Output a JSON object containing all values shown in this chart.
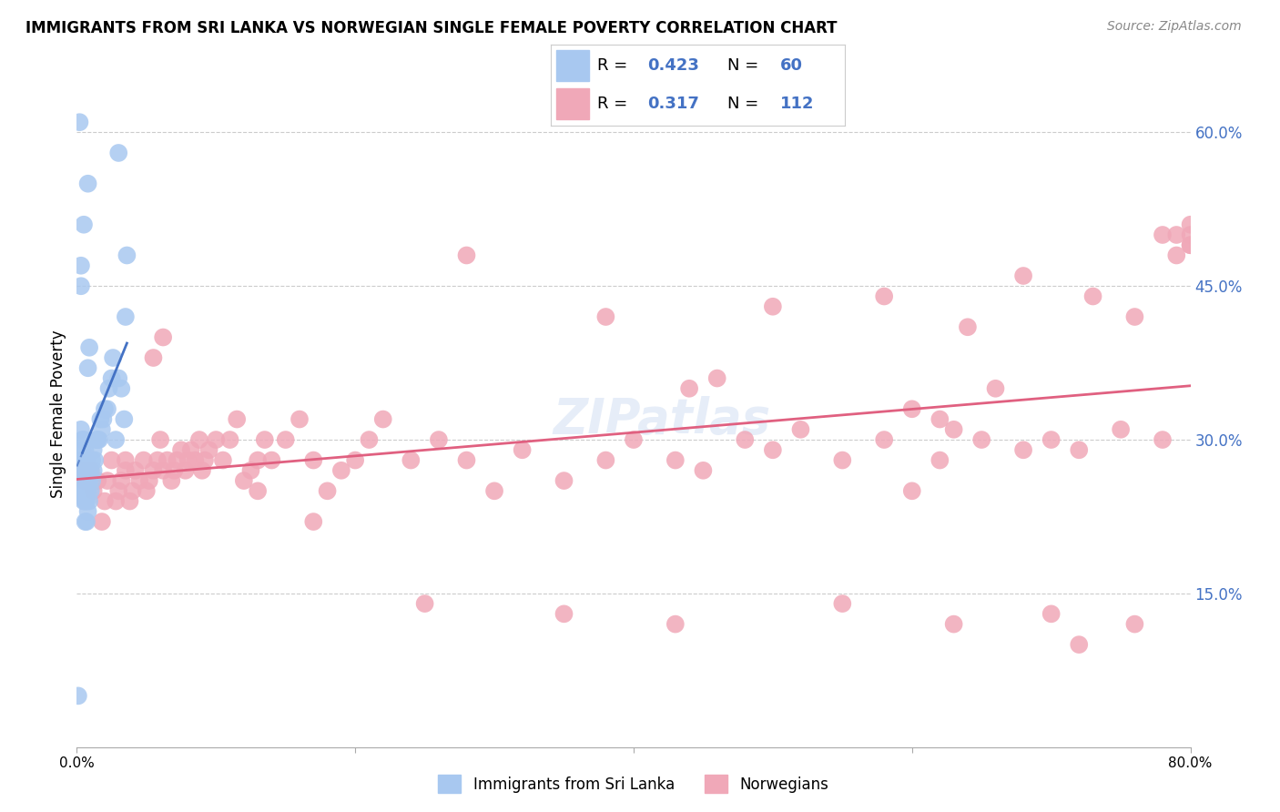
{
  "title": "IMMIGRANTS FROM SRI LANKA VS NORWEGIAN SINGLE FEMALE POVERTY CORRELATION CHART",
  "source": "Source: ZipAtlas.com",
  "ylabel": "Single Female Poverty",
  "yticks": [
    "60.0%",
    "45.0%",
    "30.0%",
    "15.0%"
  ],
  "ytick_vals": [
    0.6,
    0.45,
    0.3,
    0.15
  ],
  "legend1_label": "Immigrants from Sri Lanka",
  "legend2_label": "Norwegians",
  "r1": "0.423",
  "n1": "60",
  "r2": "0.317",
  "n2": "112",
  "color_blue": "#a8c8f0",
  "color_pink": "#f0a8b8",
  "line_blue": "#4472c4",
  "line_pink": "#e06080",
  "watermark": "ZIPatlas",
  "sri_lanka_x": [
    0.001,
    0.001,
    0.002,
    0.002,
    0.003,
    0.003,
    0.003,
    0.004,
    0.004,
    0.004,
    0.004,
    0.005,
    0.005,
    0.005,
    0.005,
    0.005,
    0.006,
    0.006,
    0.006,
    0.006,
    0.006,
    0.007,
    0.007,
    0.007,
    0.007,
    0.008,
    0.008,
    0.008,
    0.008,
    0.009,
    0.009,
    0.009,
    0.01,
    0.01,
    0.011,
    0.011,
    0.012,
    0.012,
    0.013,
    0.014,
    0.015,
    0.016,
    0.017,
    0.018,
    0.019,
    0.02,
    0.022,
    0.023,
    0.025,
    0.026,
    0.028,
    0.03,
    0.03,
    0.032,
    0.034,
    0.035,
    0.036,
    0.003,
    0.005,
    0.008
  ],
  "sri_lanka_y": [
    0.05,
    0.25,
    0.27,
    0.61,
    0.28,
    0.31,
    0.47,
    0.25,
    0.27,
    0.29,
    0.3,
    0.24,
    0.26,
    0.27,
    0.28,
    0.3,
    0.22,
    0.24,
    0.25,
    0.27,
    0.29,
    0.22,
    0.24,
    0.26,
    0.28,
    0.23,
    0.25,
    0.27,
    0.37,
    0.24,
    0.26,
    0.39,
    0.25,
    0.27,
    0.26,
    0.28,
    0.27,
    0.29,
    0.28,
    0.3,
    0.3,
    0.3,
    0.32,
    0.31,
    0.32,
    0.33,
    0.33,
    0.35,
    0.36,
    0.38,
    0.3,
    0.36,
    0.58,
    0.35,
    0.32,
    0.42,
    0.48,
    0.45,
    0.51,
    0.55
  ],
  "norwegians_x": [
    0.003,
    0.005,
    0.008,
    0.01,
    0.012,
    0.015,
    0.018,
    0.02,
    0.022,
    0.025,
    0.028,
    0.03,
    0.032,
    0.035,
    0.038,
    0.04,
    0.042,
    0.045,
    0.048,
    0.05,
    0.052,
    0.055,
    0.058,
    0.06,
    0.062,
    0.065,
    0.068,
    0.07,
    0.072,
    0.075,
    0.078,
    0.08,
    0.082,
    0.085,
    0.088,
    0.09,
    0.092,
    0.095,
    0.1,
    0.105,
    0.11,
    0.115,
    0.12,
    0.125,
    0.13,
    0.135,
    0.14,
    0.15,
    0.16,
    0.17,
    0.18,
    0.19,
    0.2,
    0.21,
    0.22,
    0.24,
    0.26,
    0.28,
    0.3,
    0.32,
    0.35,
    0.38,
    0.4,
    0.43,
    0.45,
    0.48,
    0.5,
    0.52,
    0.55,
    0.58,
    0.6,
    0.62,
    0.65,
    0.68,
    0.7,
    0.72,
    0.75,
    0.78,
    0.6,
    0.63,
    0.44,
    0.46,
    0.035,
    0.055,
    0.13,
    0.17,
    0.25,
    0.35,
    0.43,
    0.55,
    0.63,
    0.7,
    0.72,
    0.76,
    0.062,
    0.28,
    0.38,
    0.5,
    0.58,
    0.64,
    0.68,
    0.73,
    0.76,
    0.78,
    0.79,
    0.8,
    0.8,
    0.8,
    0.8,
    0.79,
    0.62,
    0.66
  ],
  "norwegians_y": [
    0.27,
    0.26,
    0.27,
    0.27,
    0.25,
    0.26,
    0.22,
    0.24,
    0.26,
    0.28,
    0.24,
    0.25,
    0.26,
    0.27,
    0.24,
    0.25,
    0.27,
    0.26,
    0.28,
    0.25,
    0.26,
    0.27,
    0.28,
    0.3,
    0.27,
    0.28,
    0.26,
    0.27,
    0.28,
    0.29,
    0.27,
    0.28,
    0.29,
    0.28,
    0.3,
    0.27,
    0.28,
    0.29,
    0.3,
    0.28,
    0.3,
    0.32,
    0.26,
    0.27,
    0.28,
    0.3,
    0.28,
    0.3,
    0.32,
    0.28,
    0.25,
    0.27,
    0.28,
    0.3,
    0.32,
    0.28,
    0.3,
    0.28,
    0.25,
    0.29,
    0.26,
    0.28,
    0.3,
    0.28,
    0.27,
    0.3,
    0.29,
    0.31,
    0.28,
    0.3,
    0.25,
    0.28,
    0.3,
    0.29,
    0.3,
    0.29,
    0.31,
    0.3,
    0.33,
    0.31,
    0.35,
    0.36,
    0.28,
    0.38,
    0.25,
    0.22,
    0.14,
    0.13,
    0.12,
    0.14,
    0.12,
    0.13,
    0.1,
    0.12,
    0.4,
    0.48,
    0.42,
    0.43,
    0.44,
    0.41,
    0.46,
    0.44,
    0.42,
    0.5,
    0.48,
    0.49,
    0.5,
    0.51,
    0.49,
    0.5,
    0.32,
    0.35
  ]
}
